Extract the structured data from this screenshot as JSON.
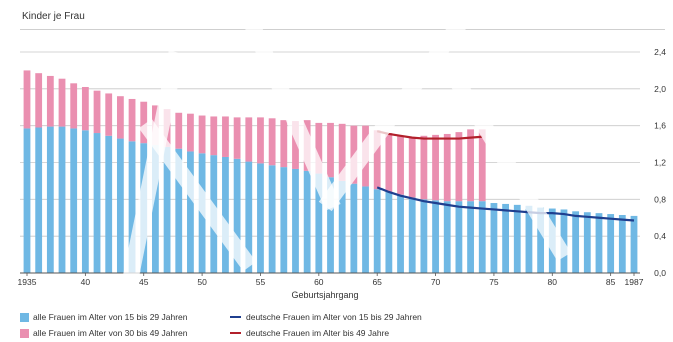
{
  "chart_data": {
    "type": "bar",
    "ylabel": "Kinder je Frau",
    "xlabel": "Geburtsjahrgang",
    "ylim": [
      0,
      2.4
    ],
    "yticks": [
      "0,0",
      "0,4",
      "0,8",
      "1,2",
      "1,6",
      "2,0",
      "2,4"
    ],
    "ytick_values": [
      0,
      0.4,
      0.8,
      1.2,
      1.6,
      2.0,
      2.4
    ],
    "grid": true,
    "years": [
      1935,
      1936,
      1937,
      1938,
      1939,
      1940,
      1941,
      1942,
      1943,
      1944,
      1945,
      1946,
      1947,
      1948,
      1949,
      1950,
      1951,
      1952,
      1953,
      1954,
      1955,
      1956,
      1957,
      1958,
      1959,
      1960,
      1961,
      1962,
      1963,
      1964,
      1965,
      1966,
      1967,
      1968,
      1969,
      1970,
      1971,
      1972,
      1973,
      1974,
      1975,
      1976,
      1977,
      1978,
      1979,
      1980,
      1981,
      1982,
      1983,
      1984,
      1985,
      1986,
      1987
    ],
    "xtick_labels": [
      {
        "year": 1935,
        "label": "1935"
      },
      {
        "year": 1940,
        "label": "40"
      },
      {
        "year": 1945,
        "label": "45"
      },
      {
        "year": 1950,
        "label": "50"
      },
      {
        "year": 1955,
        "label": "55"
      },
      {
        "year": 1960,
        "label": "60"
      },
      {
        "year": 1965,
        "label": "65"
      },
      {
        "year": 1970,
        "label": "70"
      },
      {
        "year": 1975,
        "label": "75"
      },
      {
        "year": 1980,
        "label": "80"
      },
      {
        "year": 1985,
        "label": "85"
      },
      {
        "year": 1987,
        "label": "1987"
      }
    ],
    "series": [
      {
        "name": "alle Frauen im Alter von 15 bis 29 Jahren",
        "kind": "bar",
        "color": "#6fb8e4",
        "values": [
          1.57,
          1.58,
          1.59,
          1.59,
          1.57,
          1.55,
          1.52,
          1.49,
          1.46,
          1.43,
          1.41,
          1.39,
          1.37,
          1.35,
          1.32,
          1.3,
          1.28,
          1.26,
          1.24,
          1.21,
          1.19,
          1.17,
          1.15,
          1.13,
          1.11,
          1.08,
          1.04,
          1.0,
          0.97,
          0.94,
          0.91,
          0.88,
          0.85,
          0.82,
          0.8,
          0.79,
          0.78,
          0.78,
          0.78,
          0.78,
          0.76,
          0.75,
          0.74,
          0.73,
          0.71,
          0.7,
          0.69,
          0.67,
          0.66,
          0.65,
          0.64,
          0.63,
          0.62
        ]
      },
      {
        "name": "alle Frauen im Alter von 30 bis 49 Jahren",
        "kind": "bar",
        "color": "#ea8fb0",
        "values": [
          0.63,
          0.59,
          0.55,
          0.52,
          0.49,
          0.47,
          0.46,
          0.46,
          0.46,
          0.46,
          0.45,
          0.43,
          0.41,
          0.39,
          0.41,
          0.41,
          0.42,
          0.44,
          0.45,
          0.48,
          0.5,
          0.51,
          0.51,
          0.52,
          0.55,
          0.55,
          0.59,
          0.62,
          0.63,
          0.66,
          0.64,
          0.64,
          0.64,
          0.65,
          0.69,
          0.71,
          0.73,
          0.75,
          0.78,
          0.78,
          0,
          0,
          0,
          0,
          0,
          0,
          0,
          0,
          0,
          0,
          0,
          0,
          0
        ]
      },
      {
        "name": "deutsche Frauen im Alter von 15 bis 29 Jahren",
        "kind": "line",
        "color": "#1f3f8f",
        "x": [
          1965,
          1966,
          1967,
          1968,
          1969,
          1970,
          1971,
          1972,
          1973,
          1974,
          1975,
          1976,
          1977,
          1978,
          1979,
          1980,
          1981,
          1982,
          1983,
          1984,
          1985,
          1986,
          1987
        ],
        "values": [
          0.93,
          0.88,
          0.84,
          0.81,
          0.78,
          0.76,
          0.74,
          0.72,
          0.71,
          0.7,
          0.69,
          0.68,
          0.67,
          0.66,
          0.65,
          0.65,
          0.64,
          0.62,
          0.61,
          0.6,
          0.59,
          0.58,
          0.57
        ]
      },
      {
        "name": "deutsche Frauen im Alter bis 49 Jahre",
        "kind": "line",
        "color": "#b2202b",
        "x": [
          1965,
          1966,
          1967,
          1968,
          1969,
          1970,
          1971,
          1972,
          1973,
          1974
        ],
        "values": [
          1.54,
          1.51,
          1.49,
          1.47,
          1.46,
          1.46,
          1.46,
          1.46,
          1.47,
          1.48
        ]
      }
    ]
  }
}
